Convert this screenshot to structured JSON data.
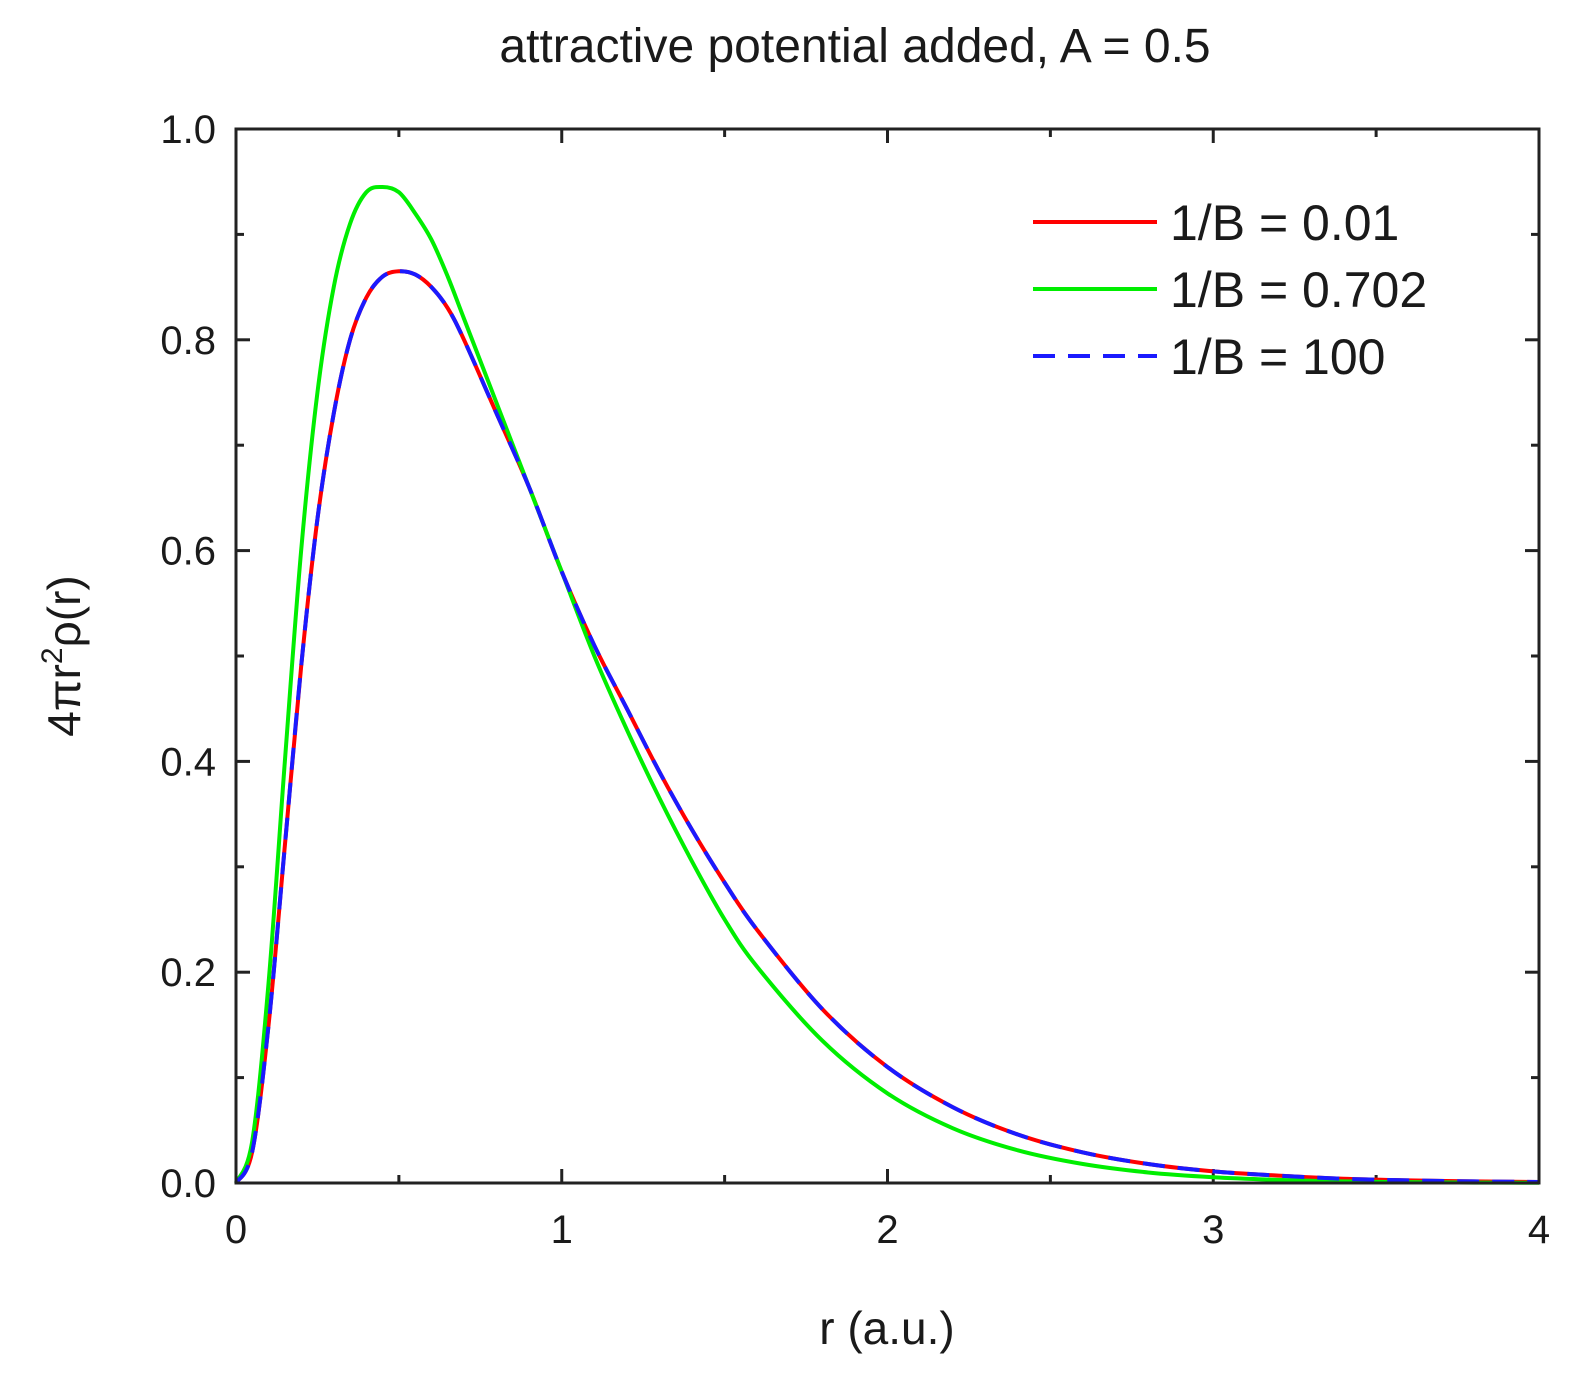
{
  "chart_data": {
    "type": "line",
    "title": "attractive potential added, A = 0.5",
    "xlabel": "r (a.u.)",
    "ylabel": {
      "base": "4πr",
      "superscript": "2",
      "rest": "ρ(r)"
    },
    "xlim": [
      0,
      4
    ],
    "ylim": [
      0,
      1.0
    ],
    "x_ticks": [
      0,
      1,
      2,
      3,
      4
    ],
    "x_tick_labels": [
      "0",
      "1",
      "2",
      "3",
      "4"
    ],
    "y_ticks": [
      0.0,
      0.2,
      0.4,
      0.6,
      0.8,
      1.0
    ],
    "y_tick_labels": [
      "0.0",
      "0.2",
      "0.4",
      "0.6",
      "0.8",
      "1.0"
    ],
    "grid": false,
    "legend_position": "top-right",
    "x": [
      0,
      0.05,
      0.1,
      0.15,
      0.2,
      0.25,
      0.3,
      0.35,
      0.4,
      0.45,
      0.5,
      0.55,
      0.6,
      0.65,
      0.7,
      0.8,
      0.9,
      1.0,
      1.1,
      1.2,
      1.3,
      1.4,
      1.5,
      1.6,
      1.8,
      2.0,
      2.2,
      2.4,
      2.6,
      2.8,
      3.0,
      3.2,
      3.4,
      3.6,
      3.8,
      4.0
    ],
    "series": [
      {
        "name": "1/B = 0.01",
        "color": "#ff0000",
        "dash": "solid",
        "values": [
          0,
          0.03,
          0.15,
          0.32,
          0.49,
          0.63,
          0.73,
          0.8,
          0.84,
          0.86,
          0.865,
          0.862,
          0.85,
          0.83,
          0.8,
          0.73,
          0.66,
          0.58,
          0.51,
          0.45,
          0.39,
          0.335,
          0.285,
          0.24,
          0.165,
          0.11,
          0.072,
          0.046,
          0.029,
          0.018,
          0.011,
          0.007,
          0.004,
          0.0025,
          0.0015,
          0.001
        ]
      },
      {
        "name": "1/B = 0.702",
        "color": "#00ee00",
        "dash": "solid",
        "values": [
          0,
          0.04,
          0.19,
          0.4,
          0.6,
          0.75,
          0.85,
          0.91,
          0.94,
          0.945,
          0.94,
          0.92,
          0.895,
          0.86,
          0.82,
          0.74,
          0.66,
          0.58,
          0.5,
          0.43,
          0.365,
          0.305,
          0.25,
          0.205,
          0.135,
          0.085,
          0.052,
          0.031,
          0.018,
          0.01,
          0.0055,
          0.003,
          0.0015,
          0.0008,
          0.0004,
          0.0002
        ]
      },
      {
        "name": "1/B = 100",
        "color": "#1a1aff",
        "dash": "dashed",
        "values": [
          0,
          0.03,
          0.15,
          0.32,
          0.49,
          0.63,
          0.73,
          0.8,
          0.84,
          0.86,
          0.865,
          0.862,
          0.85,
          0.83,
          0.8,
          0.73,
          0.66,
          0.58,
          0.51,
          0.45,
          0.39,
          0.335,
          0.285,
          0.24,
          0.165,
          0.11,
          0.072,
          0.046,
          0.029,
          0.018,
          0.011,
          0.007,
          0.004,
          0.0025,
          0.0015,
          0.001
        ]
      }
    ]
  }
}
